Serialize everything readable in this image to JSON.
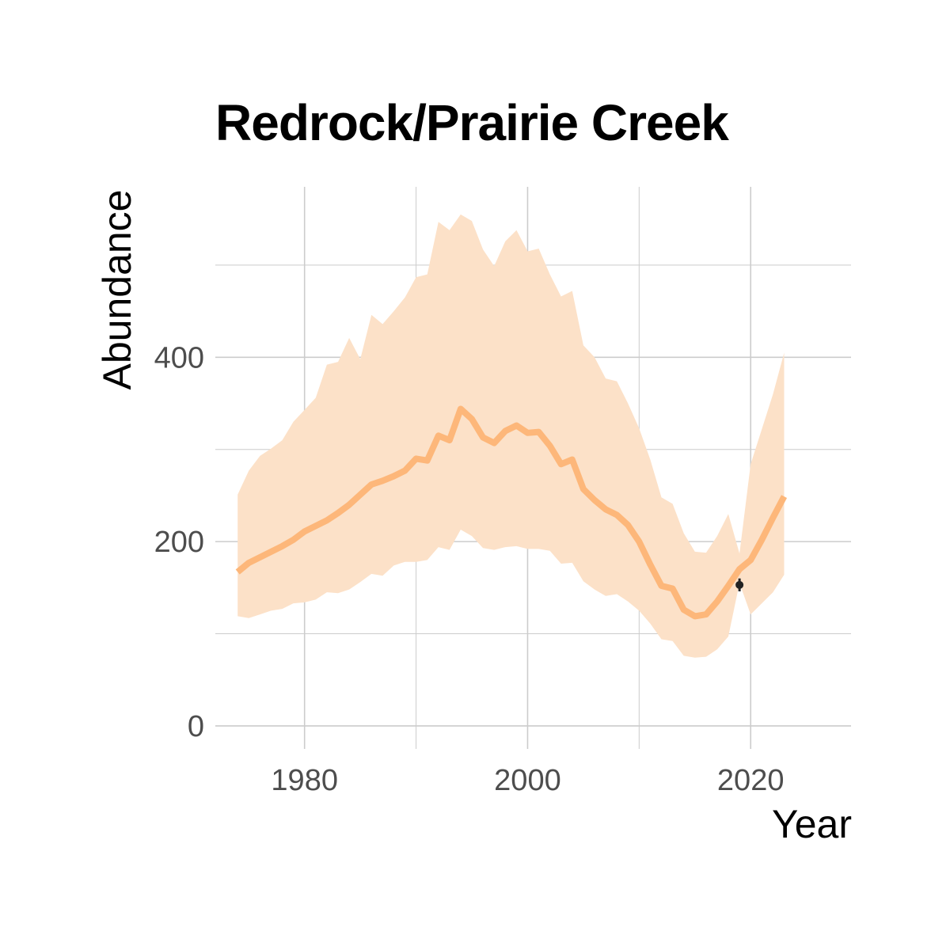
{
  "chart_data": {
    "type": "line",
    "title": "Redrock/Prairie Creek",
    "xlabel": "Year",
    "ylabel": "Abundance",
    "xlim": [
      1972,
      2029
    ],
    "ylim": [
      -25,
      585
    ],
    "x_ticks": [
      1980,
      2000,
      2020
    ],
    "x_tick_labels": [
      "1980",
      "2000",
      "2020"
    ],
    "y_ticks": [
      0,
      200,
      400
    ],
    "y_tick_labels": [
      "0",
      "200",
      "400"
    ],
    "grid": true,
    "colors": {
      "line": "#fdb77a",
      "ribbon": "#fce1c8",
      "point": "#222222",
      "grid": "#cccccc"
    },
    "series": [
      {
        "x": [
          1974,
          1975,
          1976,
          1977,
          1978,
          1979,
          1980,
          1981,
          1982,
          1983,
          1984,
          1985,
          1986,
          1987,
          1988,
          1989,
          1990,
          1991,
          1992,
          1993,
          1994,
          1995,
          1996,
          1997,
          1998,
          1999,
          2000,
          2001,
          2002,
          2003,
          2004,
          2005,
          2006,
          2007,
          2008,
          2009,
          2010,
          2011,
          2012,
          2013,
          2014,
          2015,
          2016,
          2017,
          2018,
          2019,
          2020,
          2021,
          2022,
          2023
        ],
        "values": [
          167,
          177,
          183,
          189,
          195,
          202,
          211,
          217,
          223,
          231,
          240,
          251,
          262,
          266,
          271,
          277,
          290,
          288,
          315,
          310,
          344,
          333,
          313,
          307,
          320,
          326,
          318,
          319,
          304,
          284,
          289,
          257,
          245,
          235,
          229,
          218,
          200,
          175,
          152,
          149,
          126,
          119,
          121,
          135,
          152,
          170,
          180,
          202,
          226,
          249
        ],
        "lower": [
          119,
          117,
          121,
          125,
          127,
          133,
          134,
          137,
          145,
          144,
          148,
          156,
          165,
          163,
          174,
          178,
          178,
          180,
          194,
          191,
          213,
          206,
          193,
          191,
          194,
          195,
          192,
          192,
          190,
          176,
          177,
          157,
          148,
          141,
          143,
          135,
          125,
          111,
          94,
          92,
          76,
          74,
          75,
          83,
          97,
          155,
          121,
          133,
          145,
          164
        ],
        "upper": [
          251,
          277,
          293,
          301,
          310,
          330,
          343,
          356,
          392,
          395,
          421,
          398,
          446,
          436,
          450,
          465,
          487,
          490,
          547,
          538,
          555,
          548,
          517,
          499,
          526,
          538,
          515,
          518,
          490,
          466,
          472,
          413,
          400,
          377,
          374,
          350,
          323,
          289,
          248,
          241,
          209,
          189,
          188,
          206,
          230,
          187,
          284,
          322,
          360,
          405
        ]
      }
    ],
    "points": [
      {
        "x": 2019,
        "y": 153,
        "ymin": 146,
        "ymax": 160
      }
    ]
  }
}
